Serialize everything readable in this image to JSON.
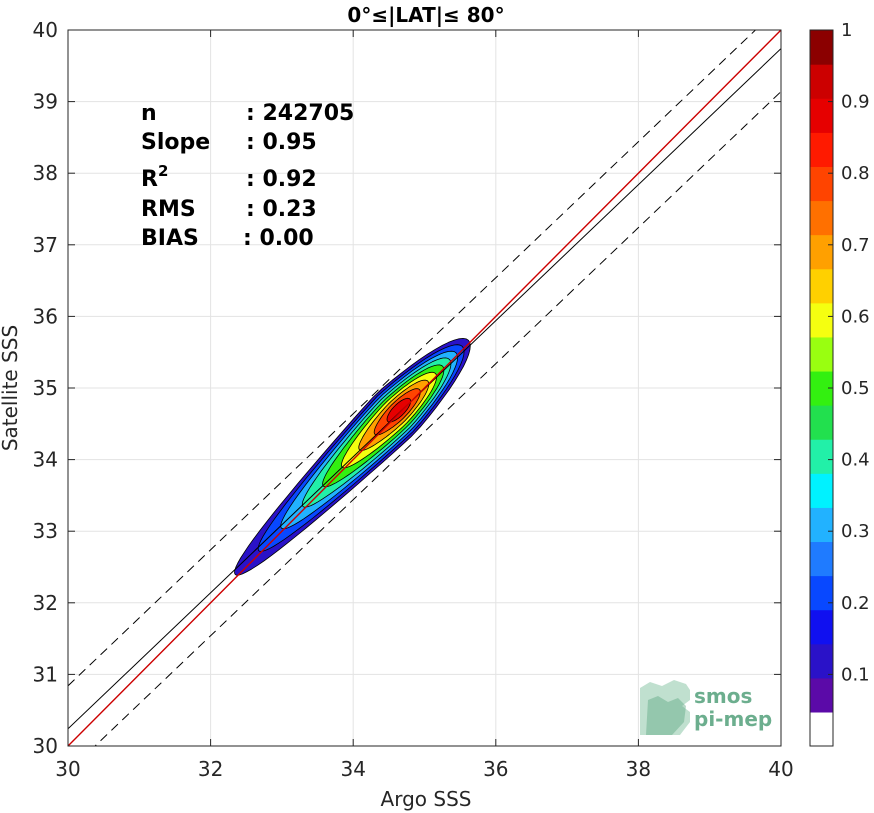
{
  "chart_data": {
    "type": "scatter",
    "title": "0°≤|LAT|≤ 80°",
    "xlabel": "Argo SSS",
    "ylabel": "Satellite SSS",
    "xlim": [
      30,
      40
    ],
    "ylim": [
      30,
      40
    ],
    "xticks": [
      "30",
      "32",
      "34",
      "36",
      "38",
      "40"
    ],
    "yticks": [
      "30",
      "31",
      "32",
      "33",
      "34",
      "35",
      "36",
      "37",
      "38",
      "39",
      "40"
    ],
    "grid": true,
    "stats": [
      {
        "name": "n",
        "value": ": 242705"
      },
      {
        "name": "Slope",
        "value": ": 0.95"
      },
      {
        "name": "R",
        "sup": "2",
        "value": ": 0.92"
      },
      {
        "name": "RMS",
        "value": ": 0.23"
      },
      {
        "name": "BIAS",
        "value": ": 0.00"
      }
    ],
    "lines": {
      "identity": {
        "slope": 1,
        "intercept": 0,
        "color": "#cc0000"
      },
      "regression": {
        "slope": 0.95,
        "intercept": 1.74,
        "color": "#000000"
      },
      "envelope_offset": 0.6
    },
    "density_contours": {
      "axis_x": [
        32.0,
        35.7
      ],
      "center": [
        34.6,
        34.65
      ],
      "levels": [
        0.05,
        0.15,
        0.25,
        0.35,
        0.45,
        0.55,
        0.65,
        0.75,
        0.85
      ]
    },
    "colorbar": {
      "range": [
        0,
        1
      ],
      "ticks": [
        "0.1",
        "0.2",
        "0.3",
        "0.4",
        "0.5",
        "0.6",
        "0.7",
        "0.8",
        "0.9",
        "1"
      ],
      "colors": [
        "#ffffff",
        "#5b0aa8",
        "#2a12c8",
        "#1010f0",
        "#0848ff",
        "#1f7bff",
        "#22b2ff",
        "#00f2ff",
        "#22f0a8",
        "#22e04e",
        "#33f010",
        "#99ff10",
        "#f5ff10",
        "#ffd000",
        "#ffa000",
        "#ff7000",
        "#ff4400",
        "#ff1a00",
        "#e60000",
        "#cc0000",
        "#8b0000"
      ]
    }
  },
  "logo": {
    "line1": "smos",
    "line2": "pi-mep",
    "color": "#6cae8e"
  }
}
